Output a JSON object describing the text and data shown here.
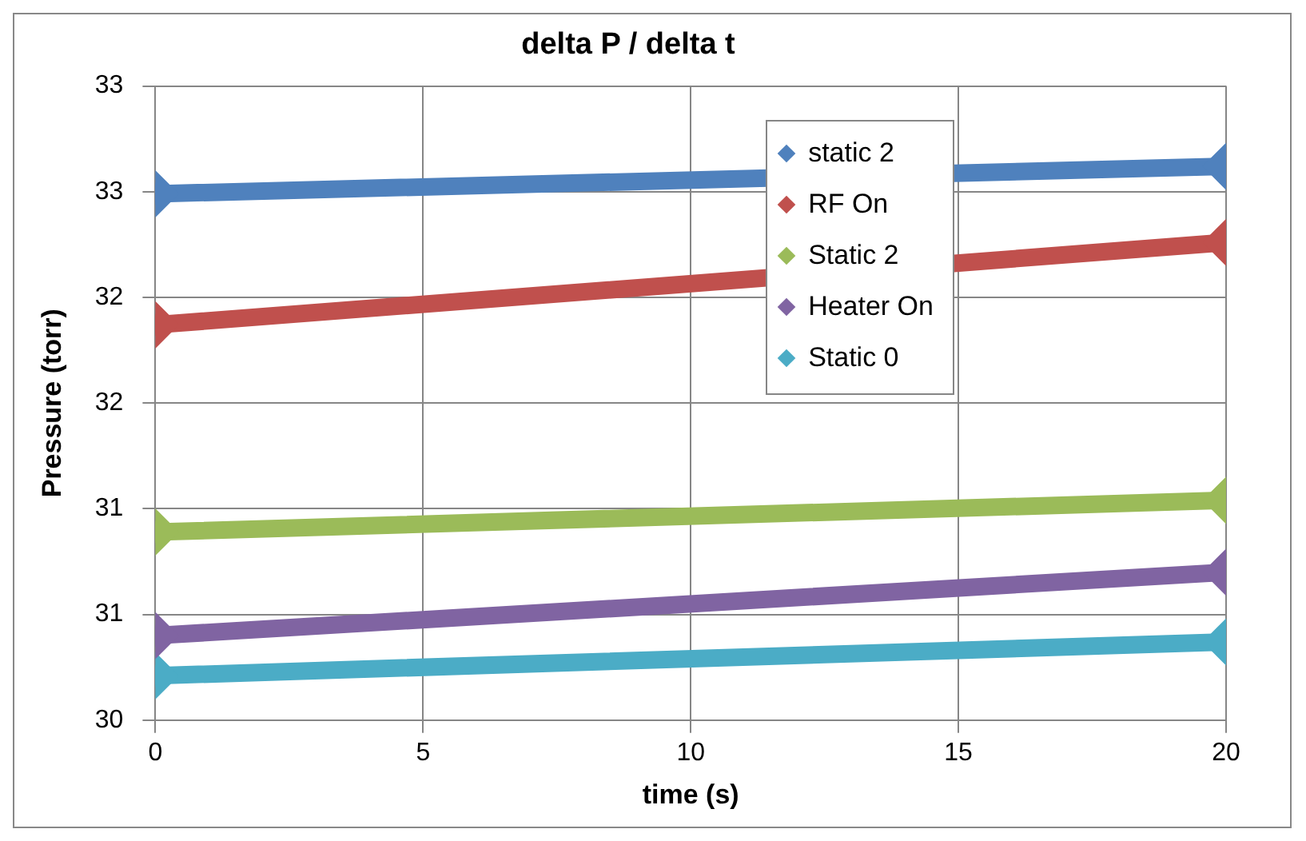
{
  "chart_data": {
    "type": "line",
    "title": "delta P / delta t",
    "xlabel": "time (s)",
    "ylabel": "Pressure (torr)",
    "x": [
      0,
      20
    ],
    "series": [
      {
        "name": "static 2",
        "color": "#4f81bd",
        "values": [
          32.49,
          32.62
        ]
      },
      {
        "name": "RF On",
        "color": "#c0504d",
        "values": [
          31.87,
          32.26
        ]
      },
      {
        "name": "Static 2",
        "color": "#9bbb59",
        "values": [
          30.89,
          31.04
        ]
      },
      {
        "name": "Heater On",
        "color": "#8064a2",
        "values": [
          30.4,
          30.7
        ]
      },
      {
        "name": "Static 0",
        "color": "#4bacc6",
        "values": [
          30.21,
          30.37
        ]
      }
    ],
    "xlim": [
      0,
      20
    ],
    "xticks": [
      0,
      5,
      10,
      15,
      20
    ],
    "ylim": [
      30,
      33
    ],
    "yticks": [
      30,
      {
        "value": 30.5,
        "label": "31"
      },
      31,
      {
        "value": 31.5,
        "label": "32"
      },
      32,
      {
        "value": 32.5,
        "label": "33"
      },
      33
    ],
    "grid": true,
    "legend": "top right",
    "marker": "diamond",
    "line_style": "solid"
  }
}
